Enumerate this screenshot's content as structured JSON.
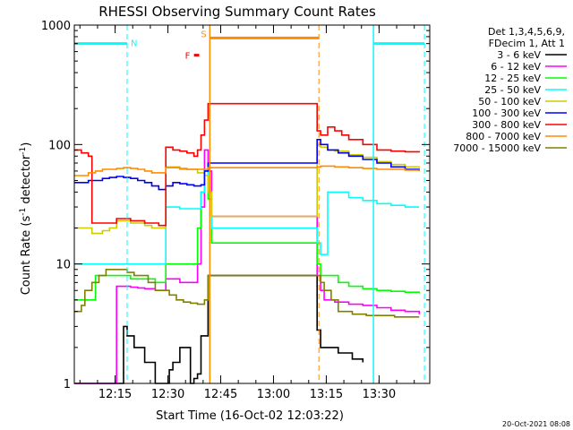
{
  "chart_data": {
    "type": "line",
    "title": "RHESSI Observing Summary Count Rates",
    "xlabel": "Start Time (16-Oct-02 12:03:22)",
    "ylabel_main": "Count Rate (s",
    "ylabel_sup1": "-1",
    "ylabel_mid": " detector",
    "ylabel_sup2": "-1",
    "ylabel_end": ")",
    "x_unit": "minutes since 12:03:22",
    "xlim": [
      0,
      101
    ],
    "ylim": [
      1,
      1000
    ],
    "yscale": "log",
    "x_ticks": [
      {
        "label": "12:15",
        "value": 11.6
      },
      {
        "label": "12:30",
        "value": 26.6
      },
      {
        "label": "12:45",
        "value": 41.6
      },
      {
        "label": "13:00",
        "value": 56.6
      },
      {
        "label": "13:15",
        "value": 71.6
      },
      {
        "label": "13:30",
        "value": 86.6
      }
    ],
    "y_ticks": [
      {
        "label": "1",
        "value": 1
      },
      {
        "label": "10",
        "value": 10
      },
      {
        "label": "100",
        "value": 100
      },
      {
        "label": "1000",
        "value": 1000
      }
    ],
    "legend_header": [
      "Det 1,3,4,5,6,9,",
      "FDecim 1, Att 1"
    ],
    "series": [
      {
        "name": "3 - 6 keV",
        "color": "#000000",
        "x": [
          0,
          5,
          9,
          12,
          14,
          15,
          17,
          20,
          23,
          25,
          27,
          28,
          30,
          32,
          33,
          34,
          35,
          36,
          38,
          69,
          70,
          72,
          75,
          79,
          82
        ],
        "y": [
          1,
          1,
          1,
          1,
          3,
          2.5,
          2,
          1.5,
          1,
          1,
          1.3,
          1.5,
          2,
          2,
          1,
          1.1,
          1.2,
          2.5,
          8,
          2.8,
          2,
          2,
          1.8,
          1.6,
          1.5
        ]
      },
      {
        "name": "6 - 12 keV",
        "color": "#ff00ff",
        "x": [
          0,
          5,
          9,
          12,
          14,
          16,
          18,
          20,
          23,
          26,
          28,
          30,
          33,
          35,
          36,
          37,
          38,
          39,
          69,
          70,
          71,
          72,
          74,
          78,
          82,
          86,
          90,
          94,
          98
        ],
        "y": [
          1,
          1,
          1,
          6.5,
          6.5,
          6.4,
          6.3,
          6.2,
          6,
          7.5,
          7.5,
          7,
          7,
          10,
          30,
          90,
          60,
          25,
          8,
          6,
          5,
          5,
          4.8,
          4.6,
          4.5,
          4.3,
          4.1,
          4,
          3.8
        ]
      },
      {
        "name": "12 - 25 keV",
        "color": "#00ff00",
        "x": [
          0,
          1,
          3,
          5,
          6,
          7,
          9,
          12,
          14,
          16,
          20,
          23,
          26,
          28,
          30,
          33,
          35,
          36,
          37,
          38,
          39,
          69,
          70,
          72,
          75,
          78,
          82,
          86,
          90,
          94,
          98
        ],
        "y": [
          5,
          5,
          5,
          5,
          8,
          8,
          8,
          8,
          8,
          7.5,
          7.5,
          7,
          10,
          10,
          10,
          10,
          20,
          40,
          60,
          35,
          15,
          10,
          8,
          8,
          7,
          6.5,
          6.2,
          6,
          5.9,
          5.8,
          5.7
        ]
      },
      {
        "name": "25 - 50 keV",
        "color": "#00ffff",
        "x": [
          0,
          5,
          6,
          8,
          10,
          12,
          14,
          16,
          18,
          20,
          22,
          24,
          26,
          28,
          30,
          33,
          36,
          37,
          38,
          39,
          69,
          70,
          71,
          72,
          74,
          78,
          82,
          86,
          90,
          94,
          98
        ],
        "y": [
          10,
          10,
          10,
          10,
          10,
          10,
          10,
          10,
          10,
          10,
          10,
          10,
          30,
          30,
          29,
          29,
          40,
          60,
          40,
          20,
          15,
          12,
          12,
          40,
          40,
          36,
          34,
          32,
          31,
          30,
          30
        ]
      },
      {
        "name": "50 - 100 keV",
        "color": "#cccc00",
        "x": [
          0,
          5,
          6,
          8,
          10,
          12,
          14,
          16,
          18,
          20,
          22,
          24,
          26,
          28,
          30,
          33,
          35,
          36,
          37,
          38,
          39,
          69,
          70,
          72,
          74,
          78,
          82,
          86,
          90,
          94,
          98
        ],
        "y": [
          20,
          18,
          18,
          19,
          20,
          23,
          23,
          22,
          22,
          21,
          20,
          20,
          65,
          65,
          62,
          62,
          58,
          58,
          55,
          40,
          25,
          100,
          95,
          90,
          88,
          82,
          78,
          72,
          68,
          65,
          64
        ]
      },
      {
        "name": "100 - 300 keV",
        "color": "#0000ff",
        "x": [
          0,
          2,
          4,
          6,
          8,
          10,
          12,
          14,
          16,
          18,
          20,
          22,
          24,
          26,
          28,
          30,
          32,
          34,
          36,
          37,
          38,
          69,
          70,
          72,
          75,
          78,
          82,
          86,
          90,
          94,
          98
        ],
        "y": [
          48,
          48,
          50,
          50,
          52,
          53,
          54,
          53,
          52,
          50,
          48,
          45,
          42,
          45,
          48,
          47,
          46,
          45,
          46,
          60,
          70,
          110,
          100,
          90,
          85,
          80,
          75,
          70,
          65,
          62,
          60
        ]
      },
      {
        "name": "300 - 800 keV",
        "color": "#ff0000",
        "x": [
          0,
          2,
          4,
          5,
          6,
          9,
          12,
          14,
          16,
          18,
          20,
          22,
          24,
          26,
          28,
          30,
          32,
          34,
          35,
          36,
          37,
          38,
          69,
          70,
          72,
          74,
          76,
          78,
          82,
          86,
          90,
          94,
          98
        ],
        "y": [
          90,
          85,
          80,
          22,
          22,
          22,
          24,
          24,
          23,
          23,
          22,
          22,
          21,
          95,
          90,
          88,
          85,
          80,
          90,
          120,
          160,
          220,
          130,
          120,
          140,
          130,
          120,
          110,
          100,
          90,
          88,
          87,
          86
        ]
      },
      {
        "name": "800 - 7000 keV",
        "color": "#ff8c00",
        "x": [
          0,
          2,
          4,
          6,
          8,
          10,
          12,
          14,
          16,
          18,
          20,
          22,
          24,
          26,
          28,
          30,
          32,
          34,
          36,
          38,
          69,
          70,
          72,
          74,
          78,
          82,
          86,
          90,
          94,
          98
        ],
        "y": [
          55,
          55,
          58,
          60,
          62,
          62,
          63,
          64,
          63,
          62,
          60,
          58,
          58,
          64,
          64,
          63,
          62,
          62,
          62,
          64,
          65,
          66,
          66,
          65,
          64,
          63,
          62,
          62,
          61,
          60
        ]
      },
      {
        "name": "7000 - 15000 keV",
        "color": "#808000",
        "x": [
          0,
          2,
          3,
          5,
          7,
          9,
          11,
          13,
          15,
          17,
          19,
          21,
          23,
          25,
          27,
          29,
          31,
          33,
          35,
          37,
          38,
          69,
          70,
          71,
          73,
          75,
          79,
          83,
          87,
          91,
          95,
          98
        ],
        "y": [
          4,
          4.5,
          6,
          7,
          8,
          9,
          9,
          9,
          8.5,
          8,
          8,
          7,
          6,
          6,
          5.5,
          5,
          4.8,
          4.7,
          4.6,
          5,
          8,
          8,
          7,
          6,
          5,
          4,
          3.8,
          3.7,
          3.7,
          3.6,
          3.6,
          3.6
        ]
      }
    ],
    "markers": {
      "night_solid": {
        "label": "",
        "color": "#ff8c00",
        "x": 38.5
      },
      "saa_start": {
        "label": "",
        "color": "#ff8c00",
        "x": 69.5
      },
      "night_start_line": {
        "label": "",
        "color": "#00ffff",
        "x": 15
      },
      "night_end_line": {
        "label": "",
        "color": "#00ffff",
        "x": 99.5
      },
      "bar_N1": {
        "label": "N",
        "color": "#00ffff",
        "x1": 0,
        "x2": 15,
        "y": 700
      },
      "bar_N2": {
        "label": "",
        "color": "#00ffff",
        "x1": 85,
        "x2": 99.5,
        "y": 700
      },
      "line_N2": {
        "label": "",
        "color": "#00ffff",
        "x": 85
      },
      "bar_S": {
        "label": "S",
        "color": "#ff8c00",
        "x1": 38.5,
        "x2": 69.5,
        "y": 780
      },
      "bar_F": {
        "label": "F",
        "color": "#ff0000",
        "x1": 34,
        "x2": 35.5,
        "y": 560
      }
    },
    "grid": false,
    "legend_placement": "right"
  },
  "footer_timestamp": "20-Oct-2021 08:08"
}
